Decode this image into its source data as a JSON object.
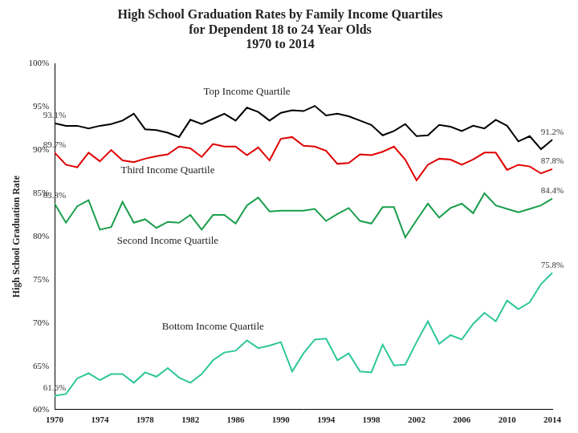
{
  "chart_data": {
    "type": "line",
    "title": [
      "High School Graduation Rates by Family Income Quartiles",
      "for Dependent 18 to 24 Year Olds",
      "1970 to 2014"
    ],
    "ylabel": "High School Graduation Rate",
    "categories": [
      "1970",
      null,
      null,
      null,
      "1974",
      null,
      null,
      null,
      "1978",
      null,
      null,
      null,
      "1982",
      null,
      null,
      null,
      "1986",
      null,
      null,
      null,
      "1990",
      null,
      null,
      null,
      "1994",
      null,
      null,
      null,
      "1998",
      null,
      null,
      null,
      "2002",
      null,
      null,
      null,
      "2006",
      null,
      null,
      null,
      "2010",
      null,
      null,
      null,
      "2014"
    ],
    "ylim": [
      60,
      100
    ],
    "yticks": [
      {
        "value": 60,
        "label": "60%"
      },
      {
        "value": 65,
        "label": "65%"
      },
      {
        "value": 70,
        "label": "70%"
      },
      {
        "value": 75,
        "label": "75%"
      },
      {
        "value": 80,
        "label": "80%"
      },
      {
        "value": 85,
        "label": "85%"
      },
      {
        "value": 90,
        "label": "90%"
      },
      {
        "value": 95,
        "label": "95%"
      },
      {
        "value": 100,
        "label": "100%"
      }
    ],
    "grid": false,
    "series": [
      {
        "name": "Top Income Quartile",
        "color": "#000000",
        "values": [
          93.1,
          92.8,
          92.8,
          92.5,
          92.8,
          93.0,
          93.4,
          94.2,
          92.4,
          92.3,
          92.0,
          91.5,
          93.5,
          93.0,
          93.6,
          94.2,
          93.4,
          94.9,
          94.4,
          93.4,
          94.3,
          94.6,
          94.5,
          95.1,
          94.0,
          94.2,
          93.9,
          93.4,
          92.9,
          91.7,
          92.2,
          93.0,
          91.6,
          91.7,
          92.9,
          92.7,
          92.2,
          92.8,
          92.5,
          93.5,
          92.8,
          91.0,
          91.6,
          90.1,
          91.2
        ],
        "value_labels": [
          "93.1%",
          null,
          null,
          null,
          null,
          null,
          null,
          null,
          null,
          null,
          null,
          null,
          null,
          null,
          null,
          null,
          null,
          null,
          null,
          null,
          null,
          null,
          null,
          null,
          null,
          null,
          null,
          null,
          null,
          null,
          null,
          null,
          null,
          null,
          null,
          null,
          null,
          null,
          null,
          null,
          null,
          null,
          null,
          null,
          "91.2%"
        ]
      },
      {
        "name": "Third Income Quartile",
        "color": "#e00000",
        "values": [
          89.7,
          88.3,
          88.0,
          89.7,
          88.7,
          90.0,
          88.8,
          88.6,
          89.0,
          89.3,
          89.5,
          90.4,
          90.2,
          89.2,
          90.7,
          90.4,
          90.4,
          89.4,
          90.3,
          88.8,
          91.3,
          91.5,
          90.5,
          90.4,
          89.9,
          88.4,
          88.5,
          89.5,
          89.4,
          89.8,
          90.4,
          88.9,
          86.5,
          88.3,
          89.0,
          88.9,
          88.3,
          88.9,
          89.7,
          89.7,
          87.7,
          88.3,
          88.1,
          87.3,
          87.8
        ],
        "value_labels": [
          "89.7%",
          null,
          null,
          null,
          null,
          null,
          null,
          null,
          null,
          null,
          null,
          null,
          null,
          null,
          null,
          null,
          null,
          null,
          null,
          null,
          null,
          null,
          null,
          null,
          null,
          null,
          null,
          null,
          null,
          null,
          null,
          null,
          null,
          null,
          null,
          null,
          null,
          null,
          null,
          null,
          null,
          null,
          null,
          null,
          "87.8%"
        ]
      },
      {
        "name": "Second Income Quartile",
        "color": "#1a9e4c",
        "values": [
          83.8,
          81.6,
          83.5,
          84.2,
          80.8,
          81.1,
          84.0,
          81.6,
          82.0,
          81.0,
          81.7,
          81.6,
          82.5,
          80.8,
          82.5,
          82.5,
          81.5,
          83.6,
          84.5,
          82.9,
          83.0,
          83.0,
          83.0,
          83.2,
          81.8,
          82.6,
          83.3,
          81.8,
          81.5,
          83.4,
          83.4,
          79.9,
          81.9,
          83.8,
          82.2,
          83.3,
          83.8,
          82.7,
          85.0,
          83.6,
          83.2,
          82.8,
          83.2,
          83.6,
          84.4
        ],
        "value_labels": [
          "83.8%",
          null,
          null,
          null,
          null,
          null,
          null,
          null,
          null,
          null,
          null,
          null,
          null,
          null,
          null,
          null,
          null,
          null,
          null,
          null,
          null,
          null,
          null,
          null,
          null,
          null,
          null,
          null,
          null,
          null,
          null,
          null,
          null,
          null,
          null,
          null,
          null,
          null,
          null,
          null,
          null,
          null,
          null,
          null,
          "84.4%"
        ]
      },
      {
        "name": "Bottom Income Quartile",
        "color": "#2ec79a",
        "values": [
          61.6,
          61.8,
          63.6,
          64.2,
          63.4,
          64.1,
          64.1,
          63.1,
          64.3,
          63.8,
          64.8,
          63.7,
          63.1,
          64.1,
          65.7,
          66.6,
          66.8,
          68.0,
          67.1,
          67.4,
          67.8,
          64.4,
          66.5,
          68.1,
          68.2,
          65.7,
          66.5,
          64.4,
          64.3,
          67.5,
          65.1,
          65.2,
          67.8,
          70.2,
          67.6,
          68.6,
          68.1,
          69.9,
          71.2,
          70.2,
          72.6,
          71.6,
          72.4,
          74.5,
          75.8
        ],
        "value_labels": [
          "61.6%",
          null,
          null,
          null,
          null,
          null,
          null,
          null,
          null,
          null,
          null,
          null,
          null,
          null,
          null,
          null,
          null,
          null,
          null,
          null,
          null,
          null,
          null,
          null,
          null,
          null,
          null,
          null,
          null,
          null,
          null,
          null,
          null,
          null,
          null,
          null,
          null,
          null,
          null,
          null,
          null,
          null,
          null,
          null,
          "75.8%"
        ]
      }
    ]
  }
}
